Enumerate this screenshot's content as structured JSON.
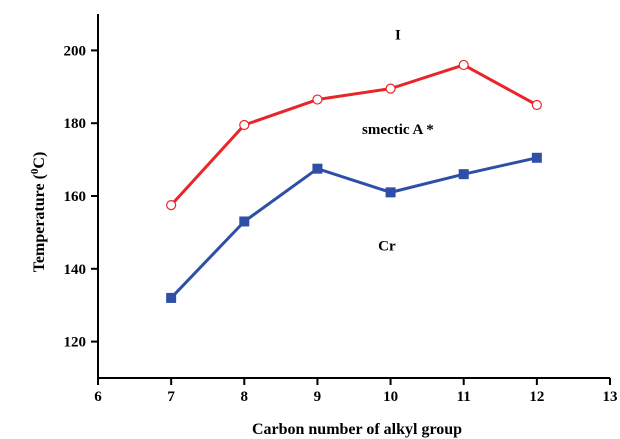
{
  "chart_data": {
    "type": "line",
    "xlabel": "Carbon number  of alkyl group",
    "ylabel_prefix": "Temperature (",
    "ylabel_sup": "0",
    "ylabel_suffix": "C)",
    "xlim": [
      6,
      13
    ],
    "ylim": [
      110,
      210
    ],
    "xticks": [
      6,
      7,
      8,
      9,
      10,
      11,
      12,
      13
    ],
    "yticks": [
      120,
      140,
      160,
      180,
      200
    ],
    "grid": false,
    "x": [
      7,
      8,
      9,
      10,
      11,
      12
    ],
    "series": [
      {
        "values": [
          157.5,
          179.5,
          186.5,
          189.5,
          196,
          185
        ],
        "color": "#e8262a",
        "marker": "open-circle"
      },
      {
        "values": [
          132,
          153,
          167.5,
          161,
          166,
          170.5
        ],
        "color": "#2e4fa8",
        "marker": "filled-square"
      }
    ],
    "annotations": [
      {
        "text": "I",
        "x": 10.1,
        "y": 203
      },
      {
        "text": "smectic A *",
        "x": 10.1,
        "y": 177
      },
      {
        "text": "Cr",
        "x": 9.95,
        "y": 145
      }
    ]
  }
}
